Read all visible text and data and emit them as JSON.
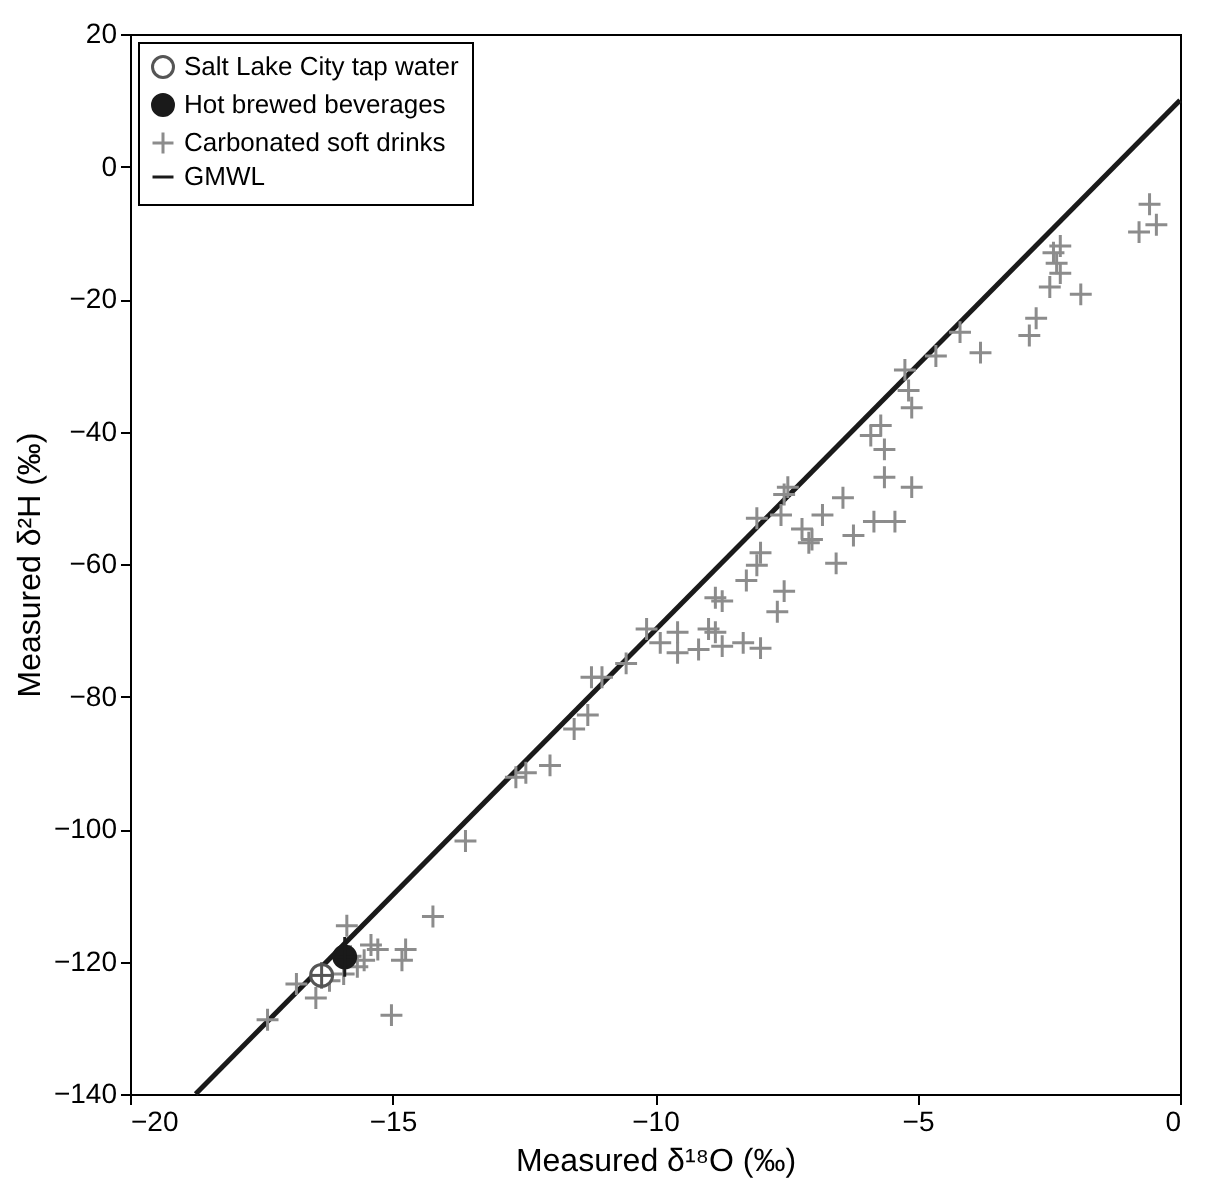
{
  "chart_data": {
    "type": "scatter",
    "xlabel": "Measured δ¹⁸O (‰)",
    "ylabel": "Measured δ²H (‰)",
    "xlim": [
      -20,
      0
    ],
    "xticks": [
      -20,
      -15,
      -10,
      -5,
      0
    ],
    "ylim": [
      -140,
      20
    ],
    "yticks": [
      -140,
      -120,
      -100,
      -80,
      -60,
      -40,
      -20,
      0,
      20
    ],
    "grid": false,
    "legend": "top left",
    "series": [
      {
        "name": "Salt Lake City tap water",
        "marker": "circle",
        "color": "#555555",
        "x": [
          -16.35
        ],
        "values": [
          -122.1
        ],
        "xerrors": [
          0.2
        ],
        "errors": [
          2
        ]
      },
      {
        "name": "Hot brewed beverages",
        "marker": "circle",
        "color": "#1a1a1a",
        "x": [
          -15.91
        ],
        "values": [
          -119.3
        ],
        "xerrors": [
          0.2
        ],
        "errors": [
          3
        ]
      },
      {
        "name": "Carbonated soft drinks",
        "marker": "cross",
        "color": "#8c8c8c",
        "x": [
          -13.61,
          -14.23,
          -15.87,
          -17.38,
          -16.83,
          -16.46,
          -15.02,
          -15.41,
          -15.28,
          -14.75,
          -14.82,
          -15.54,
          -15.67,
          -15.93,
          -16.2,
          -15.8,
          -12.65,
          -12.46,
          -12.0,
          -11.54,
          -11.28,
          -11.21,
          -11.01,
          -10.55,
          -10.16,
          -9.9,
          -9.57,
          -9.57,
          -9.17,
          -8.98,
          -8.85,
          -8.72,
          -8.32,
          -7.99,
          -8.72,
          -8.85,
          -8.26,
          -7.99,
          -8.06,
          -8.06,
          -7.54,
          -7.47,
          -7.6,
          -7.2,
          -7.07,
          -6.81,
          -7.54,
          -7.67,
          -6.55,
          -7.01,
          -6.42,
          -6.22,
          -5.83,
          -5.43,
          -5.89,
          -5.7,
          -5.63,
          -5.63,
          -5.11,
          -5.24,
          -5.17,
          -5.11,
          -4.65,
          -4.19,
          -3.8,
          -2.87,
          -2.74,
          -2.48,
          -1.89,
          -2.41,
          -2.28,
          -2.35,
          -2.28,
          -0.58,
          -0.45,
          -0.78
        ],
        "values": [
          -101.8,
          -113.2,
          -114.6,
          -128.8,
          -123.4,
          -125.5,
          -128.1,
          -117.5,
          -118.2,
          -118.2,
          -119.8,
          -119.8,
          -120.8,
          -121.9,
          -122.9,
          -119.2,
          -92.2,
          -91.5,
          -90.4,
          -84.9,
          -82.8,
          -77.1,
          -77.1,
          -75.0,
          -69.8,
          -71.9,
          -70.3,
          -73.4,
          -72.9,
          -69.8,
          -70.3,
          -72.4,
          -71.9,
          -72.7,
          -65.6,
          -65.1,
          -62.5,
          -58.3,
          -60.2,
          -53.1,
          -49.5,
          -48.4,
          -52.6,
          -54.7,
          -56.8,
          -52.6,
          -64.1,
          -67.2,
          -59.9,
          -56.3,
          -50.0,
          -55.7,
          -53.6,
          -53.6,
          -40.6,
          -39.1,
          -42.7,
          -46.9,
          -48.4,
          -30.7,
          -33.8,
          -36.4,
          -28.6,
          -25.0,
          -28.1,
          -25.5,
          -22.9,
          -18.2,
          -19.3,
          -13.0,
          -12.0,
          -14.6,
          -16.1,
          -5.7,
          -8.8,
          -9.9
        ]
      },
      {
        "name": "GMWL",
        "type": "line",
        "line_style": "solid",
        "color": "#1a1a1a",
        "x": [
          -18.75,
          0
        ],
        "values": [
          -140,
          10
        ]
      }
    ]
  }
}
